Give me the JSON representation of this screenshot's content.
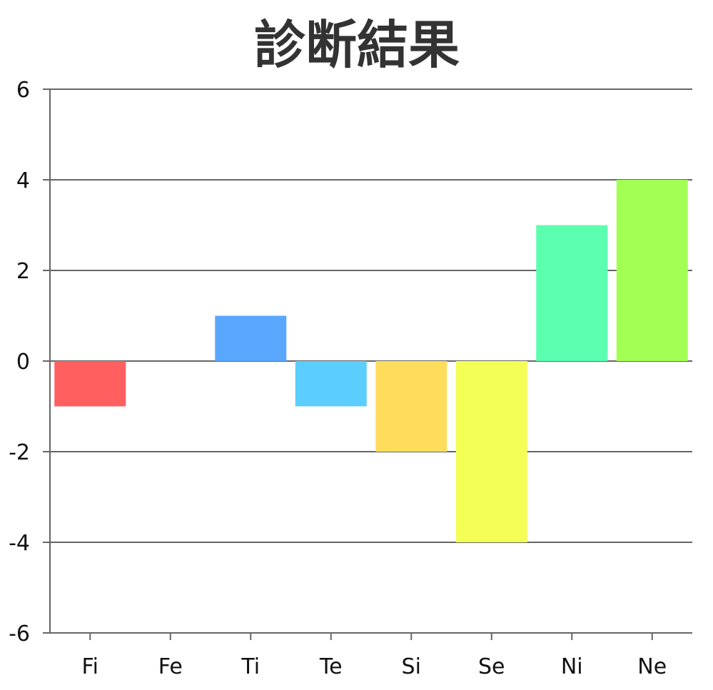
{
  "chart_data": {
    "type": "bar",
    "title": "診断結果",
    "categories": [
      "Fi",
      "Fe",
      "Ti",
      "Te",
      "Si",
      "Se",
      "Ni",
      "Ne"
    ],
    "values": [
      -1,
      0,
      1,
      -1,
      -2,
      -4,
      3,
      4
    ],
    "colors": [
      "#ff5f5f",
      "#ffffff",
      "#5aa7ff",
      "#5ccdff",
      "#ffdd5c",
      "#f4ff56",
      "#5cffb0",
      "#a2ff54"
    ],
    "ylim": [
      -6,
      6
    ],
    "yticks": [
      6,
      4,
      2,
      0,
      -2,
      -4,
      -6
    ],
    "grid": true,
    "xlabel": "",
    "ylabel": ""
  }
}
